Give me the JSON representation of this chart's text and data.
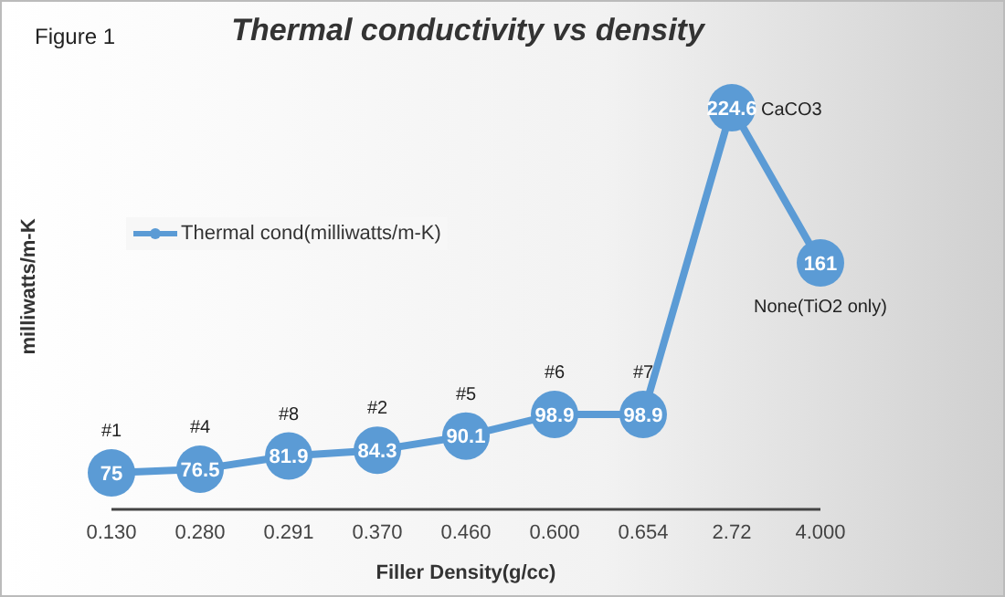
{
  "chart_data": {
    "type": "line",
    "title": "Thermal conductivity vs density",
    "xlabel": "Filler Density(g/cc)",
    "ylabel": "milliwatts/m-K",
    "categories": [
      "0.130",
      "0.280",
      "0.291",
      "0.370",
      "0.460",
      "0.600",
      "0.654",
      "2.72",
      "4.000"
    ],
    "series": [
      {
        "name": "Thermal cond(milliwatts/m-K)",
        "color": "#5b9bd5",
        "values": [
          75,
          76.5,
          81.9,
          84.3,
          90.1,
          98.9,
          98.9,
          224.6,
          161
        ]
      }
    ],
    "tick_labels": "x",
    "legend": "left",
    "marker": "circle",
    "line_style": "solid",
    "data_labels": true,
    "annotations": [
      "Figure 1",
      {
        "text": "#1",
        "x": "0.130",
        "y": 75
      },
      {
        "text": "#4",
        "x": "0.280",
        "y": 76.5
      },
      {
        "text": "#8",
        "x": "0.291",
        "y": 81.9
      },
      {
        "text": "#2",
        "x": "0.370",
        "y": 84.3
      },
      {
        "text": "#5",
        "x": "0.460",
        "y": 90.1
      },
      {
        "text": "#6",
        "x": "0.600",
        "y": 98.9
      },
      {
        "text": "#7",
        "x": "0.654",
        "y": 98.9
      },
      {
        "text": "CaCO3",
        "x": "2.72",
        "y": 224.6
      },
      {
        "text": "None(TiO2 only)",
        "x": "4.000",
        "y": 161
      }
    ]
  }
}
